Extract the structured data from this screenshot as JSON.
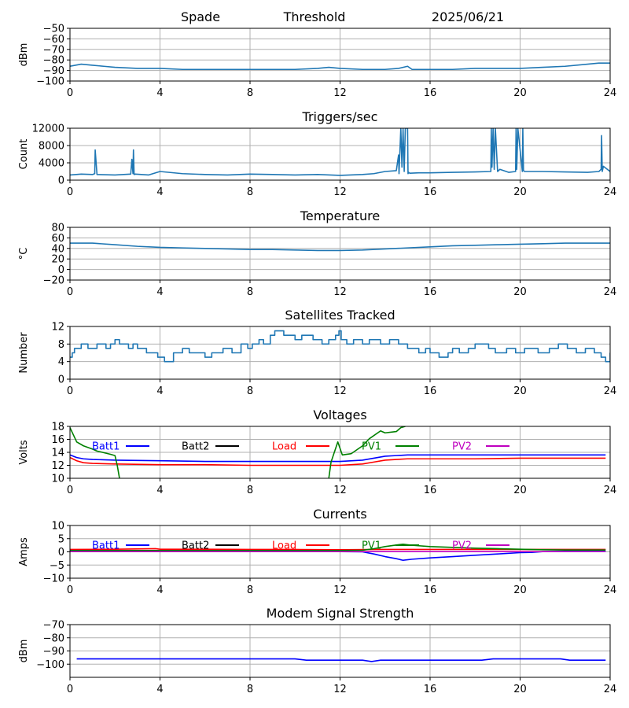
{
  "header": {
    "station": "Spade",
    "mode": "Threshold",
    "date": "2025/06/21"
  },
  "chart_data": [
    {
      "id": "signal",
      "type": "line",
      "title": "",
      "xlabel": "",
      "ylabel": "dBm",
      "xlim": [
        0,
        24
      ],
      "ylim": [
        -100,
        -50
      ],
      "xticks": [
        0,
        4,
        8,
        12,
        16,
        20,
        24
      ],
      "yticks": [
        -100,
        -90,
        -80,
        -70,
        -60,
        -50
      ],
      "ytick_labels": [
        "−100",
        "−90",
        "−80",
        "−70",
        "−60",
        "−50"
      ],
      "grid": true,
      "series": [
        {
          "color": "#1f77b4",
          "x": [
            0,
            0.5,
            1,
            1.5,
            2,
            3,
            4,
            5,
            6,
            7,
            8,
            9,
            10,
            11,
            11.5,
            12,
            13,
            14,
            14.6,
            15,
            15.2,
            16,
            17,
            18,
            19,
            20,
            21,
            22,
            23,
            23.5,
            24
          ],
          "y": [
            -86,
            -84,
            -85,
            -86,
            -87,
            -88,
            -88,
            -89,
            -89,
            -89,
            -89,
            -89,
            -89,
            -88,
            -87,
            -88,
            -89,
            -89,
            -88,
            -86,
            -89,
            -89,
            -89,
            -88,
            -88,
            -88,
            -87,
            -86,
            -84,
            -83,
            -83
          ]
        }
      ]
    },
    {
      "id": "triggers",
      "type": "line",
      "title": "Triggers/sec",
      "xlabel": "",
      "ylabel": "Count",
      "xlim": [
        0,
        24
      ],
      "ylim": [
        0,
        12000
      ],
      "xticks": [
        0,
        4,
        8,
        12,
        16,
        20,
        24
      ],
      "yticks": [
        0,
        4000,
        8000,
        12000
      ],
      "ytick_labels": [
        "0",
        "4000",
        "8000",
        "12000"
      ],
      "grid": true,
      "series": [
        {
          "color": "#1f77b4",
          "x": [
            0,
            0.5,
            1,
            1.1,
            1.12,
            1.2,
            2,
            2.7,
            2.75,
            2.8,
            2.82,
            2.85,
            2.9,
            3.5,
            4,
            5,
            6,
            7,
            8,
            9,
            10,
            11,
            12,
            13,
            13.5,
            14,
            14.5,
            14.6,
            14.62,
            14.7,
            14.75,
            14.8,
            14.85,
            14.9,
            15.0,
            15.02,
            15.05,
            15.1,
            15.5,
            16,
            17,
            18,
            18.7,
            18.72,
            18.75,
            18.8,
            18.85,
            18.9,
            19,
            19.1,
            19.5,
            19.8,
            19.82,
            19.85,
            19.9,
            20.1,
            20.12,
            20.15,
            20.2,
            21,
            22,
            23,
            23.5,
            23.6,
            23.62,
            23.65,
            23.7,
            24
          ],
          "y": [
            1200,
            1400,
            1300,
            1500,
            7000,
            1300,
            1200,
            1400,
            4800,
            1500,
            7000,
            1300,
            1400,
            1200,
            2000,
            1500,
            1300,
            1200,
            1400,
            1300,
            1200,
            1300,
            1100,
            1300,
            1500,
            2000,
            2200,
            5800,
            1500,
            12000,
            3000,
            12000,
            2000,
            12000,
            12000,
            1500,
            1800,
            1600,
            1700,
            1700,
            1800,
            1900,
            2000,
            12000,
            3000,
            12000,
            2500,
            12000,
            2000,
            2500,
            1800,
            2000,
            12000,
            2500,
            12000,
            2000,
            12000,
            2200,
            2000,
            2000,
            1900,
            1800,
            2000,
            2500,
            10300,
            2000,
            3200,
            2000
          ]
        }
      ]
    },
    {
      "id": "temperature",
      "type": "line",
      "title": "Temperature",
      "xlabel": "",
      "ylabel": "°C",
      "xlim": [
        0,
        24
      ],
      "ylim": [
        -20,
        80
      ],
      "xticks": [
        0,
        4,
        8,
        12,
        16,
        20,
        24
      ],
      "yticks": [
        -20,
        0,
        20,
        40,
        60,
        80
      ],
      "ytick_labels": [
        "−20",
        "0",
        "20",
        "40",
        "60",
        "80"
      ],
      "grid": true,
      "series": [
        {
          "color": "#1f77b4",
          "x": [
            0,
            1,
            2,
            3,
            4,
            5,
            6,
            7,
            8,
            9,
            10,
            11,
            12,
            13,
            14,
            15,
            16,
            17,
            18,
            19,
            20,
            21,
            22,
            23,
            24
          ],
          "y": [
            50,
            50,
            47,
            44,
            42,
            41,
            40,
            39,
            38,
            38,
            37,
            36,
            36,
            37,
            39,
            41,
            43,
            45,
            46,
            47,
            48,
            49,
            50,
            50,
            50
          ]
        }
      ]
    },
    {
      "id": "satellites",
      "type": "line",
      "title": "Satellites Tracked",
      "xlabel": "",
      "ylabel": "Number",
      "xlim": [
        0,
        24
      ],
      "ylim": [
        0,
        12
      ],
      "xticks": [
        0,
        4,
        8,
        12,
        16,
        20,
        24
      ],
      "yticks": [
        0,
        4,
        8,
        12
      ],
      "ytick_labels": [
        "0",
        "4",
        "8",
        "12"
      ],
      "grid": true,
      "step": true,
      "series": [
        {
          "color": "#1f77b4",
          "x": [
            0,
            0.1,
            0.2,
            0.5,
            0.8,
            1.2,
            1.6,
            1.8,
            2.0,
            2.2,
            2.6,
            2.8,
            3.0,
            3.4,
            3.9,
            4.2,
            4.6,
            5.0,
            5.3,
            6.0,
            6.3,
            6.8,
            7.2,
            7.6,
            7.9,
            8.1,
            8.4,
            8.6,
            8.9,
            9.1,
            9.5,
            10.0,
            10.3,
            10.8,
            11.2,
            11.5,
            11.8,
            11.95,
            12.05,
            12.3,
            12.6,
            13.0,
            13.3,
            13.8,
            14.2,
            14.6,
            15.0,
            15.5,
            15.8,
            16.0,
            16.4,
            16.8,
            17.0,
            17.3,
            17.7,
            18.0,
            18.6,
            18.9,
            19.4,
            19.8,
            20.2,
            20.8,
            21.3,
            21.7,
            22.1,
            22.5,
            22.9,
            23.3,
            23.6,
            23.8,
            24
          ],
          "y": [
            5,
            6,
            7,
            8,
            7,
            8,
            7,
            8,
            9,
            8,
            7,
            8,
            7,
            6,
            5,
            4,
            6,
            7,
            6,
            5,
            6,
            7,
            6,
            8,
            7,
            8,
            9,
            8,
            10,
            11,
            10,
            9,
            10,
            9,
            8,
            9,
            10,
            11,
            9,
            8,
            9,
            8,
            9,
            8,
            9,
            8,
            7,
            6,
            7,
            6,
            5,
            6,
            7,
            6,
            7,
            8,
            7,
            6,
            7,
            6,
            7,
            6,
            7,
            8,
            7,
            6,
            7,
            6,
            5,
            4,
            6
          ]
        }
      ]
    },
    {
      "id": "voltages",
      "type": "line",
      "title": "Voltages",
      "xlabel": "",
      "ylabel": "Volts",
      "xlim": [
        0,
        24
      ],
      "ylim": [
        10,
        18
      ],
      "xticks": [
        0,
        4,
        8,
        12,
        16,
        20,
        24
      ],
      "yticks": [
        10,
        12,
        14,
        16,
        18
      ],
      "ytick_labels": [
        "10",
        "12",
        "14",
        "16",
        "18"
      ],
      "grid": true,
      "legend": [
        "Batt1",
        "Batt2",
        "Load",
        "PV1",
        "PV2"
      ],
      "legend_placement": "top",
      "series": [
        {
          "name": "Batt1",
          "color": "#0000ff",
          "x": [
            0,
            0.3,
            0.6,
            1,
            2,
            4,
            6,
            8,
            10,
            12,
            13,
            13.5,
            14,
            14.5,
            15,
            16,
            18,
            20,
            22,
            23.8
          ],
          "y": [
            13.6,
            13.2,
            13.0,
            12.9,
            12.8,
            12.7,
            12.6,
            12.6,
            12.6,
            12.6,
            12.8,
            13.1,
            13.4,
            13.5,
            13.6,
            13.6,
            13.6,
            13.6,
            13.6,
            13.6
          ]
        },
        {
          "name": "Batt2",
          "color": "#000000",
          "x": [],
          "y": []
        },
        {
          "name": "Load",
          "color": "#ff0000",
          "x": [
            0,
            0.3,
            0.6,
            1,
            2,
            4,
            6,
            8,
            10,
            12,
            13,
            13.5,
            14,
            14.5,
            15,
            16,
            18,
            20,
            22,
            23.8
          ],
          "y": [
            13.2,
            12.7,
            12.4,
            12.3,
            12.2,
            12.1,
            12.1,
            12.0,
            12.0,
            12.0,
            12.2,
            12.5,
            12.8,
            12.9,
            13.0,
            13.0,
            13.0,
            13.1,
            13.1,
            13.1
          ]
        },
        {
          "name": "PV1",
          "color": "#008000",
          "x": [
            0,
            0.3,
            0.6,
            1,
            1.2,
            1.8,
            2.0,
            2.1,
            2.2
          ],
          "y": [
            17.8,
            15.6,
            15.0,
            14.5,
            14.2,
            13.7,
            13.5,
            12.0,
            10.0
          ]
        },
        {
          "name": "PV1",
          "color": "#008000",
          "x": [
            11.5,
            11.6,
            11.9,
            12.1,
            12.5,
            13.0,
            13.3,
            13.8,
            14.0,
            14.5,
            14.7,
            14.9
          ],
          "y": [
            10.0,
            12.5,
            15.6,
            13.6,
            13.8,
            15.0,
            16.1,
            17.3,
            17.0,
            17.2,
            17.8,
            18.0
          ]
        },
        {
          "name": "PV2",
          "color": "#bf00bf",
          "x": [],
          "y": []
        }
      ]
    },
    {
      "id": "currents",
      "type": "line",
      "title": "Currents",
      "xlabel": "",
      "ylabel": "Amps",
      "xlim": [
        0,
        24
      ],
      "ylim": [
        -10,
        10
      ],
      "xticks": [
        0,
        4,
        8,
        12,
        16,
        20,
        24
      ],
      "yticks": [
        -10,
        -5,
        0,
        5,
        10
      ],
      "ytick_labels": [
        "−10",
        "−5",
        "0",
        "5",
        "10"
      ],
      "grid": true,
      "legend": [
        "Batt1",
        "Batt2",
        "Load",
        "PV1",
        "PV2"
      ],
      "legend_placement": "top",
      "series": [
        {
          "name": "Batt1",
          "color": "#0000ff",
          "x": [
            0,
            2,
            4,
            6,
            8,
            10,
            12,
            13,
            13.5,
            14,
            14.5,
            14.8,
            15.2,
            16,
            17,
            18,
            19,
            20,
            20.5,
            21,
            22,
            23.8
          ],
          "y": [
            0.2,
            0.1,
            0.1,
            0.1,
            0.1,
            0.1,
            0.1,
            0.0,
            -0.8,
            -1.8,
            -2.6,
            -3.2,
            -2.8,
            -2.3,
            -1.8,
            -1.3,
            -0.8,
            -0.3,
            -0.2,
            0.1,
            0.2,
            0.2
          ]
        },
        {
          "name": "Batt2",
          "color": "#000000",
          "x": [],
          "y": []
        },
        {
          "name": "Load",
          "color": "#ff0000",
          "x": [
            0,
            2,
            3.8,
            4,
            6,
            8,
            10,
            12,
            14,
            16,
            18,
            20,
            22,
            23.8
          ],
          "y": [
            0.9,
            1.0,
            1.2,
            1.0,
            1.0,
            0.9,
            0.9,
            0.8,
            0.9,
            0.9,
            0.9,
            0.9,
            0.9,
            0.9
          ]
        },
        {
          "name": "PV1",
          "color": "#008000",
          "x": [
            0,
            4,
            8,
            12,
            13,
            13.5,
            14,
            14.5,
            14.8,
            15.2,
            16,
            17,
            18,
            19,
            20,
            21,
            22,
            23.8
          ],
          "y": [
            0.5,
            0.5,
            0.5,
            0.5,
            0.6,
            1.2,
            2.0,
            2.6,
            2.9,
            2.5,
            2.0,
            1.7,
            1.4,
            1.2,
            1.0,
            0.8,
            0.7,
            0.7
          ]
        },
        {
          "name": "PV2",
          "color": "#bf00bf",
          "x": [
            0,
            4,
            8,
            12,
            16,
            20,
            23.8
          ],
          "y": [
            0.1,
            0.1,
            0.1,
            0.1,
            0.1,
            0.1,
            0.1
          ]
        }
      ]
    },
    {
      "id": "modem",
      "type": "line",
      "title": "Modem Signal Strength",
      "xlabel": "",
      "ylabel": "dBm",
      "xlim": [
        0,
        24
      ],
      "ylim": [
        -110,
        -70
      ],
      "xticks": [
        0,
        4,
        8,
        12,
        16,
        20,
        24
      ],
      "yticks": [
        -100,
        -90,
        -80,
        -70
      ],
      "ytick_labels": [
        "−100",
        "−90",
        "−80",
        "−70"
      ],
      "grid": true,
      "series": [
        {
          "color": "#0000ff",
          "x": [
            0.3,
            2,
            4,
            6,
            8,
            9.5,
            10,
            10.5,
            11,
            12,
            13,
            13.4,
            13.8,
            14,
            15,
            16,
            17,
            18.3,
            18.8,
            19,
            20,
            21,
            21.8,
            22.2,
            23,
            23.8
          ],
          "y": [
            -96,
            -96,
            -96,
            -96,
            -96,
            -96,
            -96,
            -97,
            -97,
            -97,
            -97,
            -98,
            -97,
            -97,
            -97,
            -97,
            -97,
            -97,
            -96,
            -96,
            -96,
            -96,
            -96,
            -97,
            -97,
            -97
          ]
        }
      ]
    }
  ]
}
